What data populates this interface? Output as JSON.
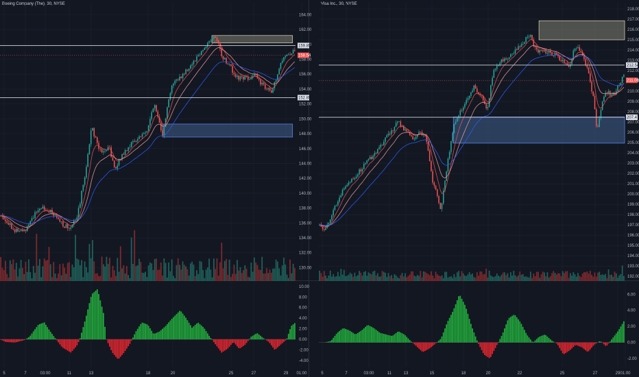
{
  "colors": {
    "background": "#131722",
    "grid": "#1f2330",
    "up": "#26a69a",
    "down": "#ef5350",
    "up_volume": "#1f5f59",
    "down_volume": "#7a2a2e",
    "hist_up": "#22ab3c",
    "hist_down": "#e0262f",
    "ema_fast": "#ef5350",
    "ema_mid": "#f0a0a0",
    "ema_slow": "#2962ff",
    "level_line": "#d1d4dc",
    "box_supply": "#9a9a86",
    "box_demand": "#4a6fa5",
    "last_price_label": "#ef5350",
    "level_label": "#e0e3eb"
  },
  "chart_data": [
    {
      "type": "candlestick",
      "title": "Boeing Company (The), 30, NYSE",
      "y_axis_labels": [
        "164.00",
        "162.00",
        "160.00",
        "158.00",
        "156.00",
        "154.00",
        "152.00",
        "150.00",
        "148.00",
        "146.00",
        "144.00",
        "142.00",
        "140.00",
        "138.00",
        "136.00",
        "134.00",
        "132.00",
        "130.00"
      ],
      "y_axis_values": [
        164,
        162,
        160,
        158,
        156,
        154,
        152,
        150,
        148,
        146,
        144,
        142,
        140,
        138,
        136,
        134,
        132,
        130
      ],
      "ylim": [
        128.2,
        165.6
      ],
      "x_axis_labels": [
        "5",
        "7",
        "03:00",
        "11",
        "13",
        "18",
        "20",
        "25",
        "27",
        "29",
        "01:00"
      ],
      "price_path": [
        [
          0,
          137.0
        ],
        [
          0.02,
          136.5
        ],
        [
          0.05,
          135.0
        ],
        [
          0.08,
          134.8
        ],
        [
          0.11,
          136.8
        ],
        [
          0.14,
          138.2
        ],
        [
          0.17,
          137.5
        ],
        [
          0.2,
          136.2
        ],
        [
          0.23,
          135.3
        ],
        [
          0.26,
          136.5
        ],
        [
          0.29,
          143.0
        ],
        [
          0.31,
          149.0
        ],
        [
          0.33,
          146.5
        ],
        [
          0.35,
          145.5
        ],
        [
          0.37,
          146.0
        ],
        [
          0.39,
          143.0
        ],
        [
          0.41,
          145.0
        ],
        [
          0.44,
          146.5
        ],
        [
          0.47,
          147.5
        ],
        [
          0.5,
          148.5
        ],
        [
          0.52,
          152.0
        ],
        [
          0.54,
          149.5
        ],
        [
          0.55,
          148.0
        ],
        [
          0.58,
          154.5
        ],
        [
          0.62,
          156.0
        ],
        [
          0.65,
          157.5
        ],
        [
          0.68,
          159.0
        ],
        [
          0.71,
          160.5
        ],
        [
          0.73,
          161.0
        ],
        [
          0.75,
          158.5
        ],
        [
          0.78,
          157.0
        ],
        [
          0.8,
          155.5
        ],
        [
          0.83,
          155.5
        ],
        [
          0.86,
          155.8
        ],
        [
          0.88,
          155.0
        ],
        [
          0.9,
          154.0
        ],
        [
          0.92,
          153.5
        ],
        [
          0.94,
          156.0
        ],
        [
          0.96,
          158.5
        ],
        [
          0.98,
          158.8
        ],
        [
          1,
          159.0
        ]
      ],
      "levels": [
        159.85,
        152.85
      ],
      "level_labels": [
        "159.85",
        "152.85"
      ],
      "last_price": "158.54",
      "last_price_value": 158.54,
      "boxes": [
        {
          "kind": "supply",
          "y_low": 160.2,
          "y_high": 161.2,
          "x_start": 0.717,
          "x_end": 0.99
        },
        {
          "kind": "demand",
          "y_low": 147.55,
          "y_high": 149.3,
          "x_start": 0.55,
          "x_end": 0.99
        }
      ],
      "histogram_y_labels": [
        "10.00",
        "8.00",
        "6.00",
        "4.00",
        "2.00",
        "0.00",
        "-2.00",
        "-4.00"
      ],
      "histogram_y_values": [
        10,
        8,
        6,
        4,
        2,
        0,
        -2,
        -4
      ],
      "histogram_ylim": [
        -5.3,
        10.5
      ],
      "histogram_path": [
        [
          0,
          0
        ],
        [
          0.02,
          -0.5
        ],
        [
          0.05,
          -0.6
        ],
        [
          0.08,
          -0.2
        ],
        [
          0.1,
          0.5
        ],
        [
          0.13,
          2.8
        ],
        [
          0.15,
          3.2
        ],
        [
          0.17,
          1.5
        ],
        [
          0.19,
          0
        ],
        [
          0.21,
          -1.5
        ],
        [
          0.24,
          -2.5
        ],
        [
          0.26,
          -1.2
        ],
        [
          0.27,
          0
        ],
        [
          0.29,
          4.0
        ],
        [
          0.31,
          8.5
        ],
        [
          0.33,
          9.5
        ],
        [
          0.35,
          5.0
        ],
        [
          0.36,
          0
        ],
        [
          0.38,
          -2.5
        ],
        [
          0.4,
          -3.8
        ],
        [
          0.42,
          -2.5
        ],
        [
          0.44,
          -0.8
        ],
        [
          0.46,
          1.5
        ],
        [
          0.48,
          3.2
        ],
        [
          0.5,
          2.8
        ],
        [
          0.52,
          1.0
        ],
        [
          0.54,
          1.5
        ],
        [
          0.56,
          2.5
        ],
        [
          0.58,
          3.8
        ],
        [
          0.61,
          5.5
        ],
        [
          0.63,
          4.0
        ],
        [
          0.65,
          2.2
        ],
        [
          0.67,
          3.2
        ],
        [
          0.69,
          2.2
        ],
        [
          0.71,
          0.5
        ],
        [
          0.73,
          -1.0
        ],
        [
          0.75,
          -2.5
        ],
        [
          0.77,
          -1.8
        ],
        [
          0.79,
          -0.5
        ],
        [
          0.81,
          -1.8
        ],
        [
          0.83,
          -1.0
        ],
        [
          0.85,
          0.5
        ],
        [
          0.87,
          1.2
        ],
        [
          0.89,
          0.3
        ],
        [
          0.91,
          -0.5
        ],
        [
          0.93,
          -2.0
        ],
        [
          0.95,
          -1.0
        ],
        [
          0.97,
          0
        ],
        [
          0.985,
          2.5
        ],
        [
          1,
          3.2
        ]
      ]
    },
    {
      "type": "candlestick",
      "title": "Visa Inc., 30, NYSE",
      "y_axis_labels": [
        "218.00",
        "217.00",
        "216.00",
        "215.00",
        "214.00",
        "213.00",
        "212.00",
        "211.00",
        "210.00",
        "209.00",
        "208.00",
        "207.00",
        "206.00",
        "205.00",
        "204.00",
        "203.00",
        "202.00",
        "201.00",
        "200.00",
        "199.00",
        "198.00",
        "197.00",
        "196.00",
        "195.00",
        "194.00",
        "193.00",
        "192.00"
      ],
      "y_axis_values": [
        218,
        217,
        216,
        215,
        214,
        213,
        212,
        211,
        210,
        209,
        208,
        207,
        206,
        205,
        204,
        203,
        202,
        201,
        200,
        199,
        198,
        197,
        196,
        195,
        194,
        193,
        192
      ],
      "ylim": [
        191.55,
        218.6
      ],
      "x_axis_labels": [
        "5",
        "7",
        "03:00",
        "11",
        "13",
        "15",
        "18",
        "20",
        "22",
        "25",
        "27",
        "29",
        "01:00"
      ],
      "price_path": [
        [
          0,
          197.0
        ],
        [
          0.02,
          196.5
        ],
        [
          0.05,
          198.5
        ],
        [
          0.08,
          200.5
        ],
        [
          0.11,
          201.5
        ],
        [
          0.14,
          202.5
        ],
        [
          0.17,
          203.5
        ],
        [
          0.2,
          204.5
        ],
        [
          0.23,
          205.8
        ],
        [
          0.26,
          207.0
        ],
        [
          0.29,
          206.0
        ],
        [
          0.31,
          205.5
        ],
        [
          0.33,
          206.0
        ],
        [
          0.35,
          205.5
        ],
        [
          0.37,
          201.5
        ],
        [
          0.4,
          198.5
        ],
        [
          0.42,
          203.0
        ],
        [
          0.44,
          206.5
        ],
        [
          0.47,
          208.5
        ],
        [
          0.49,
          209.5
        ],
        [
          0.51,
          210.5
        ],
        [
          0.53,
          209.5
        ],
        [
          0.55,
          208.0
        ],
        [
          0.57,
          212.0
        ],
        [
          0.6,
          213.0
        ],
        [
          0.63,
          213.5
        ],
        [
          0.66,
          214.5
        ],
        [
          0.69,
          215.5
        ],
        [
          0.71,
          214.0
        ],
        [
          0.74,
          213.8
        ],
        [
          0.77,
          213.5
        ],
        [
          0.8,
          213.0
        ],
        [
          0.82,
          212.5
        ],
        [
          0.84,
          214.5
        ],
        [
          0.86,
          213.5
        ],
        [
          0.88,
          212.0
        ],
        [
          0.9,
          209.0
        ],
        [
          0.91,
          206.0
        ],
        [
          0.92,
          208.0
        ],
        [
          0.94,
          210.0
        ],
        [
          0.96,
          209.5
        ],
        [
          0.98,
          210.5
        ],
        [
          1,
          212.0
        ]
      ],
      "levels": [
        212.54,
        207.47
      ],
      "level_labels": [
        "212.54",
        "207.47"
      ],
      "last_price": "211.06",
      "last_price_value": 211.06,
      "boxes": [
        {
          "kind": "supply",
          "y_low": 215.0,
          "y_high": 216.85,
          "x_start": 0.72,
          "x_end": 1.0
        },
        {
          "kind": "demand",
          "y_low": 204.95,
          "y_high": 207.5,
          "x_start": 0.44,
          "x_end": 1.0
        }
      ],
      "histogram_y_labels": [
        "6.00",
        "4.00",
        "2.00",
        "0.00",
        "-2.00"
      ],
      "histogram_y_values": [
        6,
        4,
        2,
        0,
        -2
      ],
      "histogram_ylim": [
        -3.1,
        7.3
      ],
      "histogram_path": [
        [
          0,
          0
        ],
        [
          0.02,
          0
        ],
        [
          0.04,
          0.2
        ],
        [
          0.06,
          1.2
        ],
        [
          0.08,
          1.8
        ],
        [
          0.1,
          1.5
        ],
        [
          0.12,
          1.0
        ],
        [
          0.14,
          1.5
        ],
        [
          0.16,
          2.2
        ],
        [
          0.18,
          1.8
        ],
        [
          0.2,
          1.2
        ],
        [
          0.22,
          1.0
        ],
        [
          0.24,
          0.8
        ],
        [
          0.26,
          1.4
        ],
        [
          0.28,
          1.0
        ],
        [
          0.3,
          0.2
        ],
        [
          0.32,
          -0.5
        ],
        [
          0.34,
          -1.2
        ],
        [
          0.36,
          -0.8
        ],
        [
          0.38,
          -0.2
        ],
        [
          0.4,
          0.5
        ],
        [
          0.42,
          2.5
        ],
        [
          0.44,
          4.0
        ],
        [
          0.46,
          6.0
        ],
        [
          0.48,
          4.5
        ],
        [
          0.5,
          2.0
        ],
        [
          0.52,
          0
        ],
        [
          0.54,
          -1.5
        ],
        [
          0.56,
          -2.0
        ],
        [
          0.58,
          -0.5
        ],
        [
          0.6,
          1.0
        ],
        [
          0.62,
          3.0
        ],
        [
          0.64,
          3.5
        ],
        [
          0.66,
          2.5
        ],
        [
          0.68,
          1.0
        ],
        [
          0.7,
          0
        ],
        [
          0.72,
          0.7
        ],
        [
          0.74,
          1.0
        ],
        [
          0.76,
          0.3
        ],
        [
          0.78,
          -0.2
        ],
        [
          0.8,
          -1.5
        ],
        [
          0.82,
          -1.0
        ],
        [
          0.84,
          -0.3
        ],
        [
          0.86,
          -0.6
        ],
        [
          0.88,
          -1.2
        ],
        [
          0.9,
          -0.3
        ],
        [
          0.92,
          0.2
        ],
        [
          0.94,
          -0.5
        ],
        [
          0.96,
          0.5
        ],
        [
          0.98,
          1.5
        ],
        [
          1,
          2.8
        ]
      ]
    }
  ]
}
